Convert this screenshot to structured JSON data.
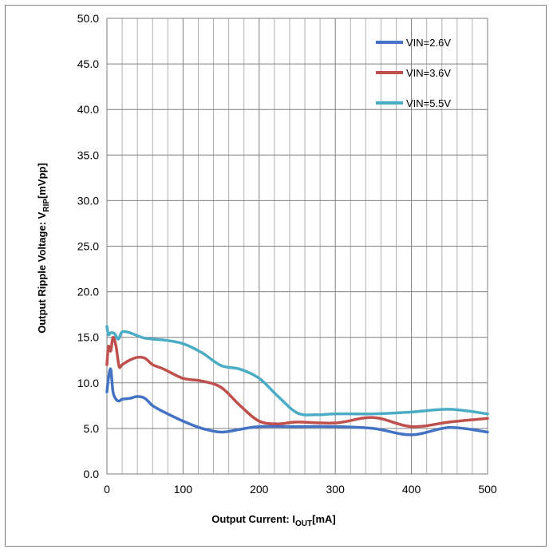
{
  "chart_data": {
    "type": "line",
    "xlabel": {
      "main": "Output Current: I",
      "sub": "OUT",
      "unit": "[mA]"
    },
    "ylabel": {
      "main": "Output Ripple Voltage: V",
      "sub": "RIP",
      "unit": "[mVpp]"
    },
    "xlim": [
      0,
      500
    ],
    "ylim": [
      0,
      50
    ],
    "xticks": [
      "0",
      "100",
      "200",
      "300",
      "400",
      "500"
    ],
    "yticks": [
      "0.0",
      "5.0",
      "10.0",
      "15.0",
      "20.0",
      "25.0",
      "30.0",
      "35.0",
      "40.0",
      "45.0",
      "50.0"
    ],
    "grid": true,
    "legend_position": "top-right",
    "series": [
      {
        "name": "VIN=2.6V",
        "color": "#4472c4",
        "x": [
          0,
          2,
          5,
          8,
          12,
          16,
          20,
          30,
          40,
          50,
          60,
          75,
          100,
          125,
          150,
          175,
          200,
          250,
          300,
          350,
          400,
          450,
          500
        ],
        "y": [
          9.0,
          10.5,
          11.5,
          9.0,
          8.2,
          8.0,
          8.2,
          8.3,
          8.5,
          8.3,
          7.5,
          6.8,
          5.8,
          5.0,
          4.6,
          4.9,
          5.2,
          5.2,
          5.2,
          5.0,
          4.3,
          5.1,
          4.6
        ]
      },
      {
        "name": "VIN=3.6V",
        "color": "#c0504d",
        "x": [
          0,
          2,
          5,
          8,
          12,
          16,
          20,
          30,
          40,
          50,
          60,
          75,
          100,
          125,
          150,
          175,
          200,
          225,
          250,
          300,
          350,
          400,
          450,
          500
        ],
        "y": [
          12.0,
          14.0,
          13.5,
          15.0,
          14.0,
          11.8,
          12.0,
          12.5,
          12.8,
          12.7,
          12.0,
          11.5,
          10.5,
          10.2,
          9.5,
          7.5,
          5.8,
          5.5,
          5.7,
          5.6,
          6.2,
          5.2,
          5.7,
          6.1
        ]
      },
      {
        "name": "VIN=5.5V",
        "color": "#4bacc6",
        "x": [
          0,
          2,
          5,
          10,
          15,
          20,
          30,
          50,
          75,
          100,
          125,
          150,
          175,
          200,
          225,
          250,
          275,
          300,
          350,
          400,
          450,
          500
        ],
        "y": [
          16.2,
          15.3,
          15.5,
          15.4,
          14.8,
          15.6,
          15.5,
          14.9,
          14.7,
          14.3,
          13.3,
          11.9,
          11.5,
          10.5,
          8.5,
          6.7,
          6.5,
          6.6,
          6.6,
          6.8,
          7.1,
          6.6
        ]
      }
    ]
  }
}
